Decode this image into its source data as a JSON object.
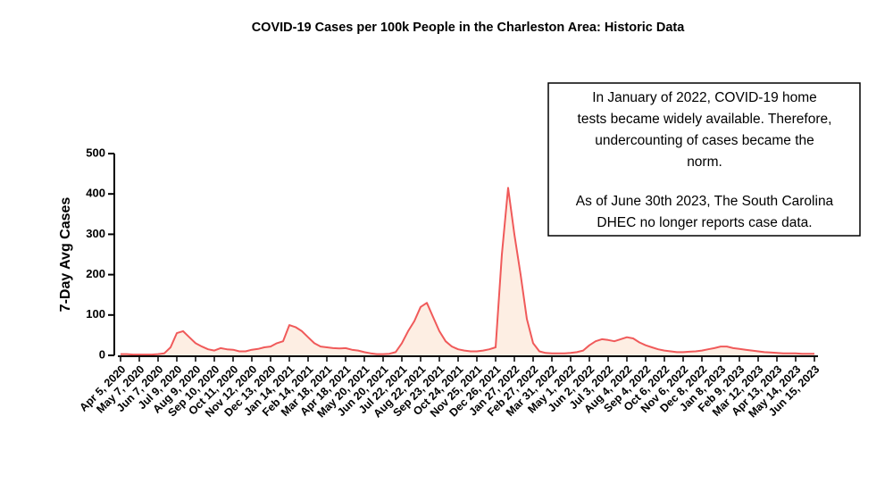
{
  "chart_data": {
    "type": "line",
    "title": "COVID-19 Cases per 100k People in the Charleston Area: Historic Data",
    "y_label": "7-Day Avg Cases",
    "annotation": [
      "In January of 2022, COVID-19 home",
      "tests became widely available. Therefore,",
      "undercounting of cases became the",
      "norm.",
      "As of June 30th 2023, The South Carolina",
      "DHEC no longer reports case data."
    ],
    "categories": [
      "Apr 5, 2020",
      null,
      null,
      "May 7, 2020",
      null,
      null,
      "Jun 7, 2020",
      null,
      null,
      "Jul 9, 2020",
      null,
      null,
      "Aug 9, 2020",
      null,
      null,
      "Sep 10, 2020",
      null,
      null,
      "Oct 11, 2020",
      null,
      null,
      "Nov 12, 2020",
      null,
      null,
      "Dec 13, 2020",
      null,
      null,
      "Jan 14, 2021",
      null,
      null,
      "Feb 14, 2021",
      null,
      null,
      "Mar 18, 2021",
      null,
      null,
      "Apr 18, 2021",
      null,
      null,
      "May 20, 2021",
      null,
      null,
      "Jun 20, 2021",
      null,
      null,
      "Jul 22, 2021",
      null,
      null,
      "Aug 22, 2021",
      null,
      null,
      "Sep 23, 2021",
      null,
      null,
      "Oct 24, 2021",
      null,
      null,
      "Nov 25, 2021",
      null,
      null,
      "Dec 26, 2021",
      null,
      null,
      "Jan 27, 2022",
      null,
      null,
      "Feb 27, 2022",
      null,
      null,
      "Mar 31, 2022",
      null,
      null,
      "May 1, 2022",
      null,
      null,
      "Jun 2, 2022",
      null,
      null,
      "Jul 3, 2022",
      null,
      null,
      "Aug 4, 2022",
      null,
      null,
      "Sep 4, 2022",
      null,
      null,
      "Oct 6, 2022",
      null,
      null,
      "Nov 6, 2022",
      null,
      null,
      "Dec 8, 2022",
      null,
      null,
      "Jan 8, 2023",
      null,
      null,
      "Feb 9, 2023",
      null,
      null,
      "Mar 12, 2023",
      null,
      null,
      "Apr 13, 2023",
      null,
      null,
      "May 14, 2023",
      null,
      null,
      "Jun 15, 2023"
    ],
    "values": [
      3,
      3,
      2,
      2,
      2,
      2,
      3,
      5,
      20,
      55,
      60,
      45,
      30,
      22,
      15,
      12,
      18,
      15,
      14,
      10,
      10,
      14,
      16,
      20,
      22,
      30,
      35,
      75,
      70,
      60,
      45,
      30,
      22,
      20,
      18,
      17,
      18,
      14,
      12,
      8,
      5,
      3,
      3,
      4,
      8,
      30,
      60,
      85,
      120,
      130,
      95,
      60,
      35,
      22,
      15,
      12,
      10,
      10,
      12,
      15,
      20,
      250,
      415,
      300,
      200,
      90,
      30,
      10,
      6,
      5,
      5,
      5,
      6,
      8,
      12,
      25,
      35,
      40,
      38,
      35,
      40,
      45,
      42,
      32,
      25,
      20,
      15,
      12,
      10,
      8,
      8,
      9,
      10,
      12,
      15,
      18,
      22,
      22,
      18,
      16,
      14,
      12,
      10,
      8,
      7,
      6,
      5,
      5,
      5,
      4,
      4,
      4
    ],
    "color": "#f05a5a",
    "fill": "#fdeee3",
    "ylim": [
      0,
      500
    ],
    "yticks": [
      0,
      100,
      200,
      300,
      400,
      500
    ]
  }
}
